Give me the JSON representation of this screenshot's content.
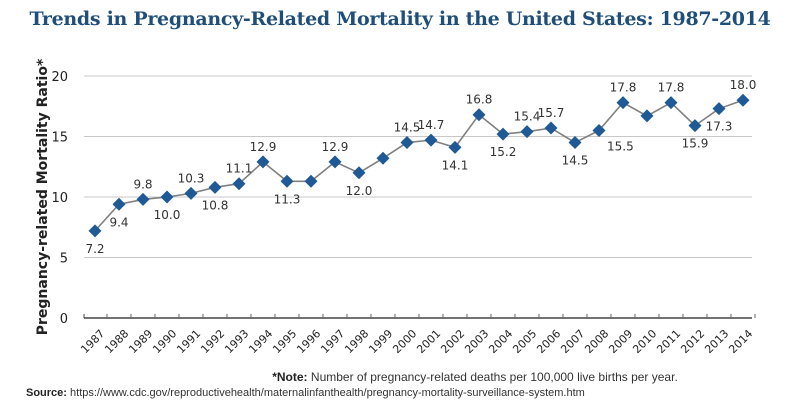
{
  "title": "Trends in Pregnancy-Related Mortality in the United States: 1987-2014",
  "note_label": "*Note:",
  "note_text": " Number of pregnancy-related deaths per 100,000 live births per year.",
  "source_label": "Source:",
  "source_text": " https://www.cdc.gov/reproductivehealth/maternalinfanthealth/pregnancy-mortality-surveillance-system.htm",
  "colors": {
    "title": "#1f4e79",
    "marker": "#1f5a96",
    "line": "#808080",
    "grid": "#c8c8c8"
  },
  "chart_data": {
    "type": "line",
    "title": "Trends in Pregnancy-Related Mortality in the United States: 1987-2014",
    "xlabel": "",
    "ylabel": "Pregnancy-related Mortality Ratio*",
    "ylim": [
      0,
      20
    ],
    "yticks": [
      0,
      5,
      10,
      15,
      20
    ],
    "grid": true,
    "categories": [
      "1987",
      "1988",
      "1989",
      "1990",
      "1991",
      "1992",
      "1993",
      "1994",
      "1995",
      "1996",
      "1997",
      "1998",
      "1999",
      "2000",
      "2001",
      "2002",
      "2003",
      "2004",
      "2005",
      "2006",
      "2007",
      "2008",
      "2009",
      "2010",
      "2011",
      "2012",
      "2013",
      "2014"
    ],
    "series": [
      {
        "name": "Pregnancy-related Mortality Ratio",
        "values": [
          7.2,
          9.4,
          9.8,
          10.0,
          10.3,
          10.8,
          11.1,
          12.9,
          11.3,
          11.3,
          12.9,
          12.0,
          13.2,
          14.5,
          14.7,
          14.1,
          16.8,
          15.2,
          15.4,
          15.7,
          14.5,
          15.5,
          17.8,
          16.7,
          17.8,
          15.9,
          17.3,
          18.0
        ],
        "labels": [
          "7.2",
          "9.4",
          "9.8",
          "10.0",
          "10.3",
          "10.8",
          "11.1",
          "12.9",
          "11.3",
          "",
          "12.9",
          "12.0",
          "",
          "14.5",
          "14.7",
          "14.1",
          "16.8",
          "15.2",
          "15.4",
          "15.7",
          "14.5",
          "15.5",
          "17.8",
          "",
          "17.8",
          "15.9",
          "17.3",
          "18.0"
        ],
        "label_pos": [
          "below",
          "below",
          "above",
          "below",
          "above",
          "below",
          "above",
          "above",
          "below",
          "",
          "above",
          "below",
          "",
          "above",
          "above",
          "below",
          "above",
          "below",
          "above",
          "above",
          "below",
          "right",
          "above",
          "",
          "above",
          "below",
          "below",
          "above"
        ]
      }
    ]
  }
}
